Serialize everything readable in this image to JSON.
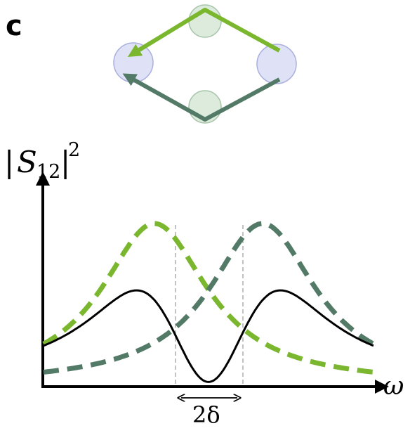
{
  "panel_label": "c",
  "ylabel": {
    "bars_left": "|",
    "S": "S",
    "sub": "12",
    "bars_right": "|",
    "sup": "2"
  },
  "xlabel": "ω",
  "split_label": "2δ",
  "colors": {
    "light_green": "#7ab72e",
    "dark_green": "#527a66",
    "black": "#000000",
    "site_fill_left_right": "#dfe2f6",
    "site_stroke_left_right": "#aab0de",
    "site_fill_top_bottom": "#dcebdc",
    "site_stroke_top_bottom": "#a8c5ab",
    "guide": "#9a9a9a"
  },
  "curves": {
    "light_green_center": -1,
    "dark_green_center": 1,
    "peak_height": 1.0,
    "half_width": 1.2
  }
}
